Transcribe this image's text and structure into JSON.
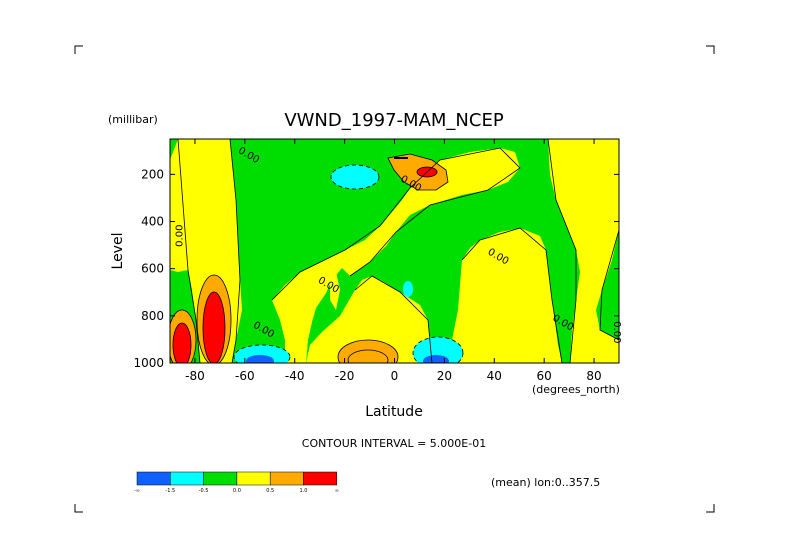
{
  "chart_data": {
    "type": "contour",
    "title": "VWND_1997-MAM_NCEP",
    "xlabel": "Latitude",
    "ylabel": "Level",
    "xunits": "(degrees_north)",
    "yunits": "(millibar)",
    "xlim": [
      -90,
      90
    ],
    "ylim": [
      1000,
      50
    ],
    "xticks": [
      -80,
      -60,
      -40,
      -20,
      0,
      20,
      40,
      60,
      80
    ],
    "xtick_labels": [
      "-80",
      "-60",
      "-40",
      "-20",
      "0",
      "20",
      "40",
      "60",
      "80"
    ],
    "yticks": [
      200,
      400,
      600,
      800,
      1000
    ],
    "ytick_labels": [
      "200",
      "400",
      "600",
      "800",
      "1000"
    ],
    "contour_interval_text": "CONTOUR INTERVAL = 5.000E-01",
    "mean_text": "(mean) lon:0..357.5",
    "colorbar": {
      "colors": [
        "#1060ff",
        "#00ffff",
        "#00dd00",
        "#ffff00",
        "#ffaa00",
        "#ff0000"
      ],
      "labels": [
        "-∞",
        "-1.5",
        "-0.5",
        "0.0",
        "0.5",
        "1.0",
        "∞"
      ]
    },
    "contour_labels": [
      {
        "lat": -59,
        "lev": 130,
        "text": "0.00"
      },
      {
        "lat": -85,
        "lev": 460,
        "text": "0.00"
      },
      {
        "lat": 6,
        "lev": 250,
        "text": "0.00"
      },
      {
        "lat": 41,
        "lev": 560,
        "text": "0.00"
      },
      {
        "lat": -27,
        "lev": 680,
        "text": "0.00"
      },
      {
        "lat": -53,
        "lev": 870,
        "text": "0.00"
      },
      {
        "lat": 67,
        "lev": 840,
        "text": "0.00"
      },
      {
        "lat": 88,
        "lev": 870,
        "text": "0.00"
      }
    ]
  }
}
